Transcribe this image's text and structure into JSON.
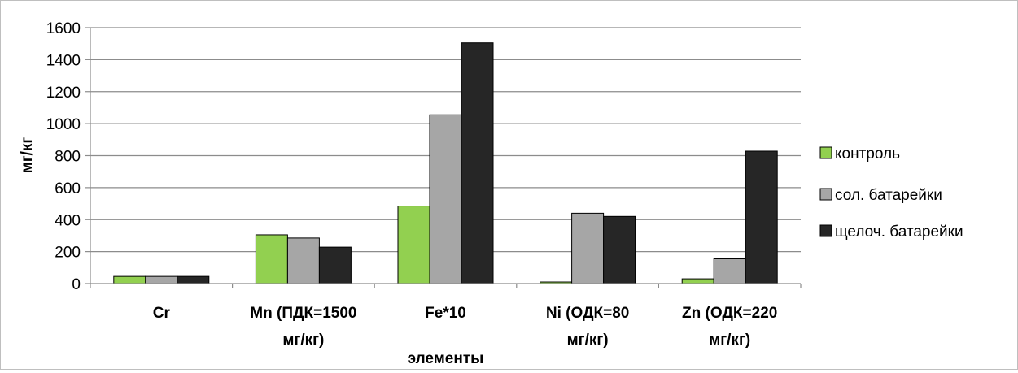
{
  "chart_data": {
    "type": "bar",
    "categories": [
      [
        "Cr"
      ],
      [
        "Mn (ПДК=1500",
        "мг/кг)"
      ],
      [
        "Fe*10"
      ],
      [
        "Ni (ОДК=80",
        "мг/кг)"
      ],
      [
        "Zn (ОДК=220",
        "мг/кг)"
      ]
    ],
    "series": [
      {
        "name": "контроль",
        "color": "#92d050",
        "values": [
          45,
          305,
          485,
          10,
          30
        ]
      },
      {
        "name": "сол. батарейки",
        "color": "#a6a6a6",
        "values": [
          45,
          285,
          1055,
          440,
          155
        ]
      },
      {
        "name": "щелоч. батарейки",
        "color": "#262626",
        "values": [
          45,
          228,
          1505,
          420,
          828
        ]
      }
    ],
    "xlabel": "элементы",
    "ylabel": "мг/кг",
    "ylim": [
      0,
      1600
    ],
    "yticks": [
      0,
      200,
      400,
      600,
      800,
      1000,
      1200,
      1400,
      1600
    ],
    "grid": true,
    "legend_position": "right"
  }
}
